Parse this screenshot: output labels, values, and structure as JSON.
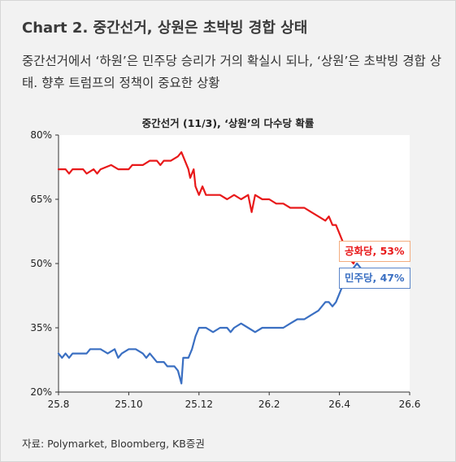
{
  "header": {
    "title": "Chart 2. 중간선거, 상원은 초박빙 경합 상태",
    "description": "중간선거에서 ‘하원’은 민주당 승리가 거의 확실시 되나, ‘상원’은 초박빙 경합 상태. 향후 트럼프의 정책이 중요한 상황"
  },
  "footer": {
    "source": "자료: Polymarket, Bloomberg, KB증권"
  },
  "callouts": {
    "red_label": "공화당, 53%",
    "blue_label": "민주당, 47%"
  },
  "chart_data": {
    "type": "line",
    "title": "중간선거 (11/3), ‘상원’의 다수당 확률",
    "xlabel": "",
    "ylabel": "",
    "x_ticks": [
      "25.8",
      "25.10",
      "25.12",
      "26.2",
      "26.4",
      "26.6"
    ],
    "y_ticks": [
      "80%",
      "65%",
      "50%",
      "35%",
      "20%"
    ],
    "xlim": [
      0,
      10
    ],
    "ylim": [
      20,
      80
    ],
    "grid": false,
    "series": [
      {
        "name": "공화당",
        "color": "#e8191a",
        "points": [
          [
            0,
            72
          ],
          [
            0.2,
            72
          ],
          [
            0.3,
            71
          ],
          [
            0.4,
            72
          ],
          [
            0.7,
            72
          ],
          [
            0.8,
            71
          ],
          [
            1.0,
            72
          ],
          [
            1.1,
            71
          ],
          [
            1.2,
            72
          ],
          [
            1.5,
            73
          ],
          [
            1.7,
            72
          ],
          [
            2.0,
            72
          ],
          [
            2.1,
            73
          ],
          [
            2.4,
            73
          ],
          [
            2.6,
            74
          ],
          [
            2.8,
            74
          ],
          [
            2.9,
            73
          ],
          [
            3.0,
            74
          ],
          [
            3.2,
            74
          ],
          [
            3.4,
            75
          ],
          [
            3.5,
            76
          ],
          [
            3.6,
            74
          ],
          [
            3.7,
            72
          ],
          [
            3.75,
            70
          ],
          [
            3.85,
            72
          ],
          [
            3.9,
            68
          ],
          [
            4.0,
            66
          ],
          [
            4.1,
            68
          ],
          [
            4.2,
            66
          ],
          [
            4.4,
            66
          ],
          [
            4.6,
            66
          ],
          [
            4.8,
            65
          ],
          [
            5.0,
            66
          ],
          [
            5.2,
            65
          ],
          [
            5.4,
            66
          ],
          [
            5.5,
            62
          ],
          [
            5.6,
            66
          ],
          [
            5.8,
            65
          ],
          [
            6.0,
            65
          ],
          [
            6.2,
            64
          ],
          [
            6.4,
            64
          ],
          [
            6.6,
            63
          ],
          [
            6.8,
            63
          ],
          [
            7.0,
            63
          ],
          [
            7.2,
            62
          ],
          [
            7.4,
            61
          ],
          [
            7.6,
            60
          ],
          [
            7.7,
            61
          ],
          [
            7.8,
            59
          ],
          [
            7.9,
            59
          ],
          [
            8.0,
            57
          ],
          [
            8.1,
            55
          ],
          [
            8.2,
            53
          ],
          [
            8.3,
            51
          ],
          [
            8.4,
            50
          ],
          [
            8.5,
            52
          ],
          [
            8.6,
            51
          ],
          [
            8.7,
            53
          ]
        ]
      },
      {
        "name": "민주당",
        "color": "#3a6fc2",
        "points": [
          [
            0,
            29
          ],
          [
            0.1,
            28
          ],
          [
            0.2,
            29
          ],
          [
            0.3,
            28
          ],
          [
            0.4,
            29
          ],
          [
            0.6,
            29
          ],
          [
            0.8,
            29
          ],
          [
            0.9,
            30
          ],
          [
            1.0,
            30
          ],
          [
            1.2,
            30
          ],
          [
            1.4,
            29
          ],
          [
            1.6,
            30
          ],
          [
            1.7,
            28
          ],
          [
            1.8,
            29
          ],
          [
            2.0,
            30
          ],
          [
            2.2,
            30
          ],
          [
            2.4,
            29
          ],
          [
            2.5,
            28
          ],
          [
            2.6,
            29
          ],
          [
            2.8,
            27
          ],
          [
            3.0,
            27
          ],
          [
            3.1,
            26
          ],
          [
            3.3,
            26
          ],
          [
            3.4,
            25
          ],
          [
            3.5,
            22
          ],
          [
            3.55,
            28
          ],
          [
            3.7,
            28
          ],
          [
            3.8,
            30
          ],
          [
            3.9,
            33
          ],
          [
            4.0,
            35
          ],
          [
            4.2,
            35
          ],
          [
            4.4,
            34
          ],
          [
            4.6,
            35
          ],
          [
            4.8,
            35
          ],
          [
            4.9,
            34
          ],
          [
            5.0,
            35
          ],
          [
            5.2,
            36
          ],
          [
            5.4,
            35
          ],
          [
            5.6,
            34
          ],
          [
            5.8,
            35
          ],
          [
            6.0,
            35
          ],
          [
            6.2,
            35
          ],
          [
            6.4,
            35
          ],
          [
            6.6,
            36
          ],
          [
            6.8,
            37
          ],
          [
            7.0,
            37
          ],
          [
            7.2,
            38
          ],
          [
            7.4,
            39
          ],
          [
            7.6,
            41
          ],
          [
            7.7,
            41
          ],
          [
            7.8,
            40
          ],
          [
            7.9,
            41
          ],
          [
            8.0,
            43
          ],
          [
            8.1,
            45
          ],
          [
            8.2,
            47
          ],
          [
            8.3,
            48
          ],
          [
            8.4,
            49
          ],
          [
            8.5,
            50
          ],
          [
            8.6,
            49
          ],
          [
            8.7,
            47
          ]
        ]
      }
    ]
  }
}
